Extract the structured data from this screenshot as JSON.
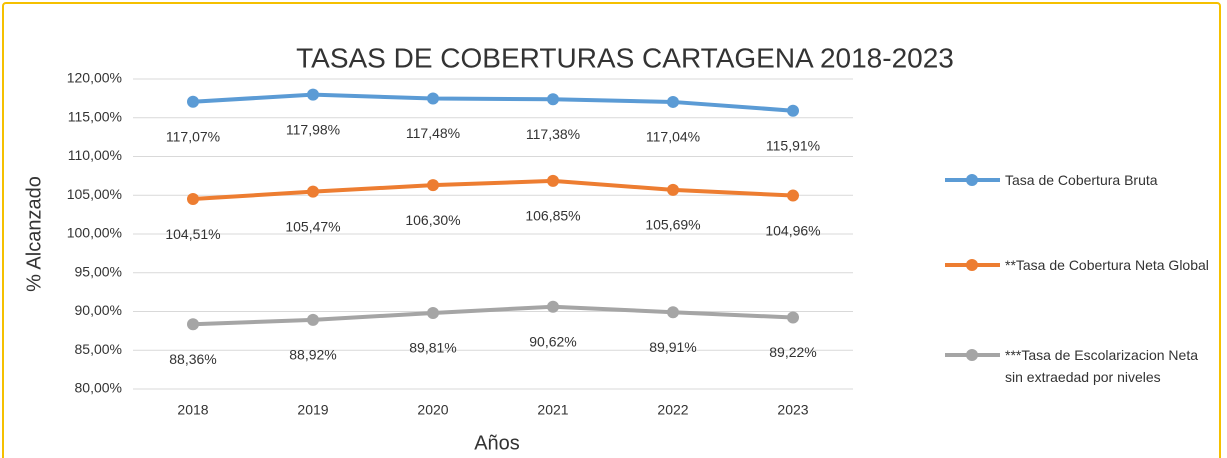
{
  "chart_data": {
    "type": "line",
    "title": "TASAS DE COBERTURAS CARTAGENA 2018-2023",
    "x_label": "Años",
    "y_label": "% Alcanzado",
    "categories": [
      "2018",
      "2019",
      "2020",
      "2021",
      "2022",
      "2023"
    ],
    "series": [
      {
        "name": "Tasa de Cobertura Bruta",
        "color": "#5b9bd5",
        "values": [
          117.07,
          117.98,
          117.48,
          117.38,
          117.04,
          115.91
        ],
        "value_labels": [
          "117,07%",
          "117,98%",
          "117,48%",
          "117,38%",
          "117,04%",
          "115,91%"
        ]
      },
      {
        "name": "**Tasa de Cobertura Neta Global",
        "color": "#ed7d31",
        "values": [
          104.51,
          105.47,
          106.3,
          106.85,
          105.69,
          104.96
        ],
        "value_labels": [
          "104,51%",
          "105,47%",
          "106,30%",
          "106,85%",
          "105,69%",
          "104,96%"
        ]
      },
      {
        "name": "***Tasa de Escolarizacion Neta sin extraedad por niveles",
        "color": "#a5a5a5",
        "values": [
          88.36,
          88.92,
          89.81,
          90.62,
          89.91,
          89.22
        ],
        "value_labels": [
          "88,36%",
          "88,92%",
          "89,81%",
          "90,62%",
          "89,91%",
          "89,22%"
        ]
      }
    ],
    "ylim": [
      80,
      120
    ],
    "yticks": [
      {
        "value": 80,
        "label": "80,00%"
      },
      {
        "value": 85,
        "label": "85,00%"
      },
      {
        "value": 90,
        "label": "90,00%"
      },
      {
        "value": 95,
        "label": "95,00%"
      },
      {
        "value": 100,
        "label": "100,00%"
      },
      {
        "value": 105,
        "label": "105,00%"
      },
      {
        "value": 110,
        "label": "110,00%"
      },
      {
        "value": 115,
        "label": "115,00%"
      },
      {
        "value": 120,
        "label": "120,00%"
      }
    ],
    "grid": true,
    "legend": "right"
  }
}
